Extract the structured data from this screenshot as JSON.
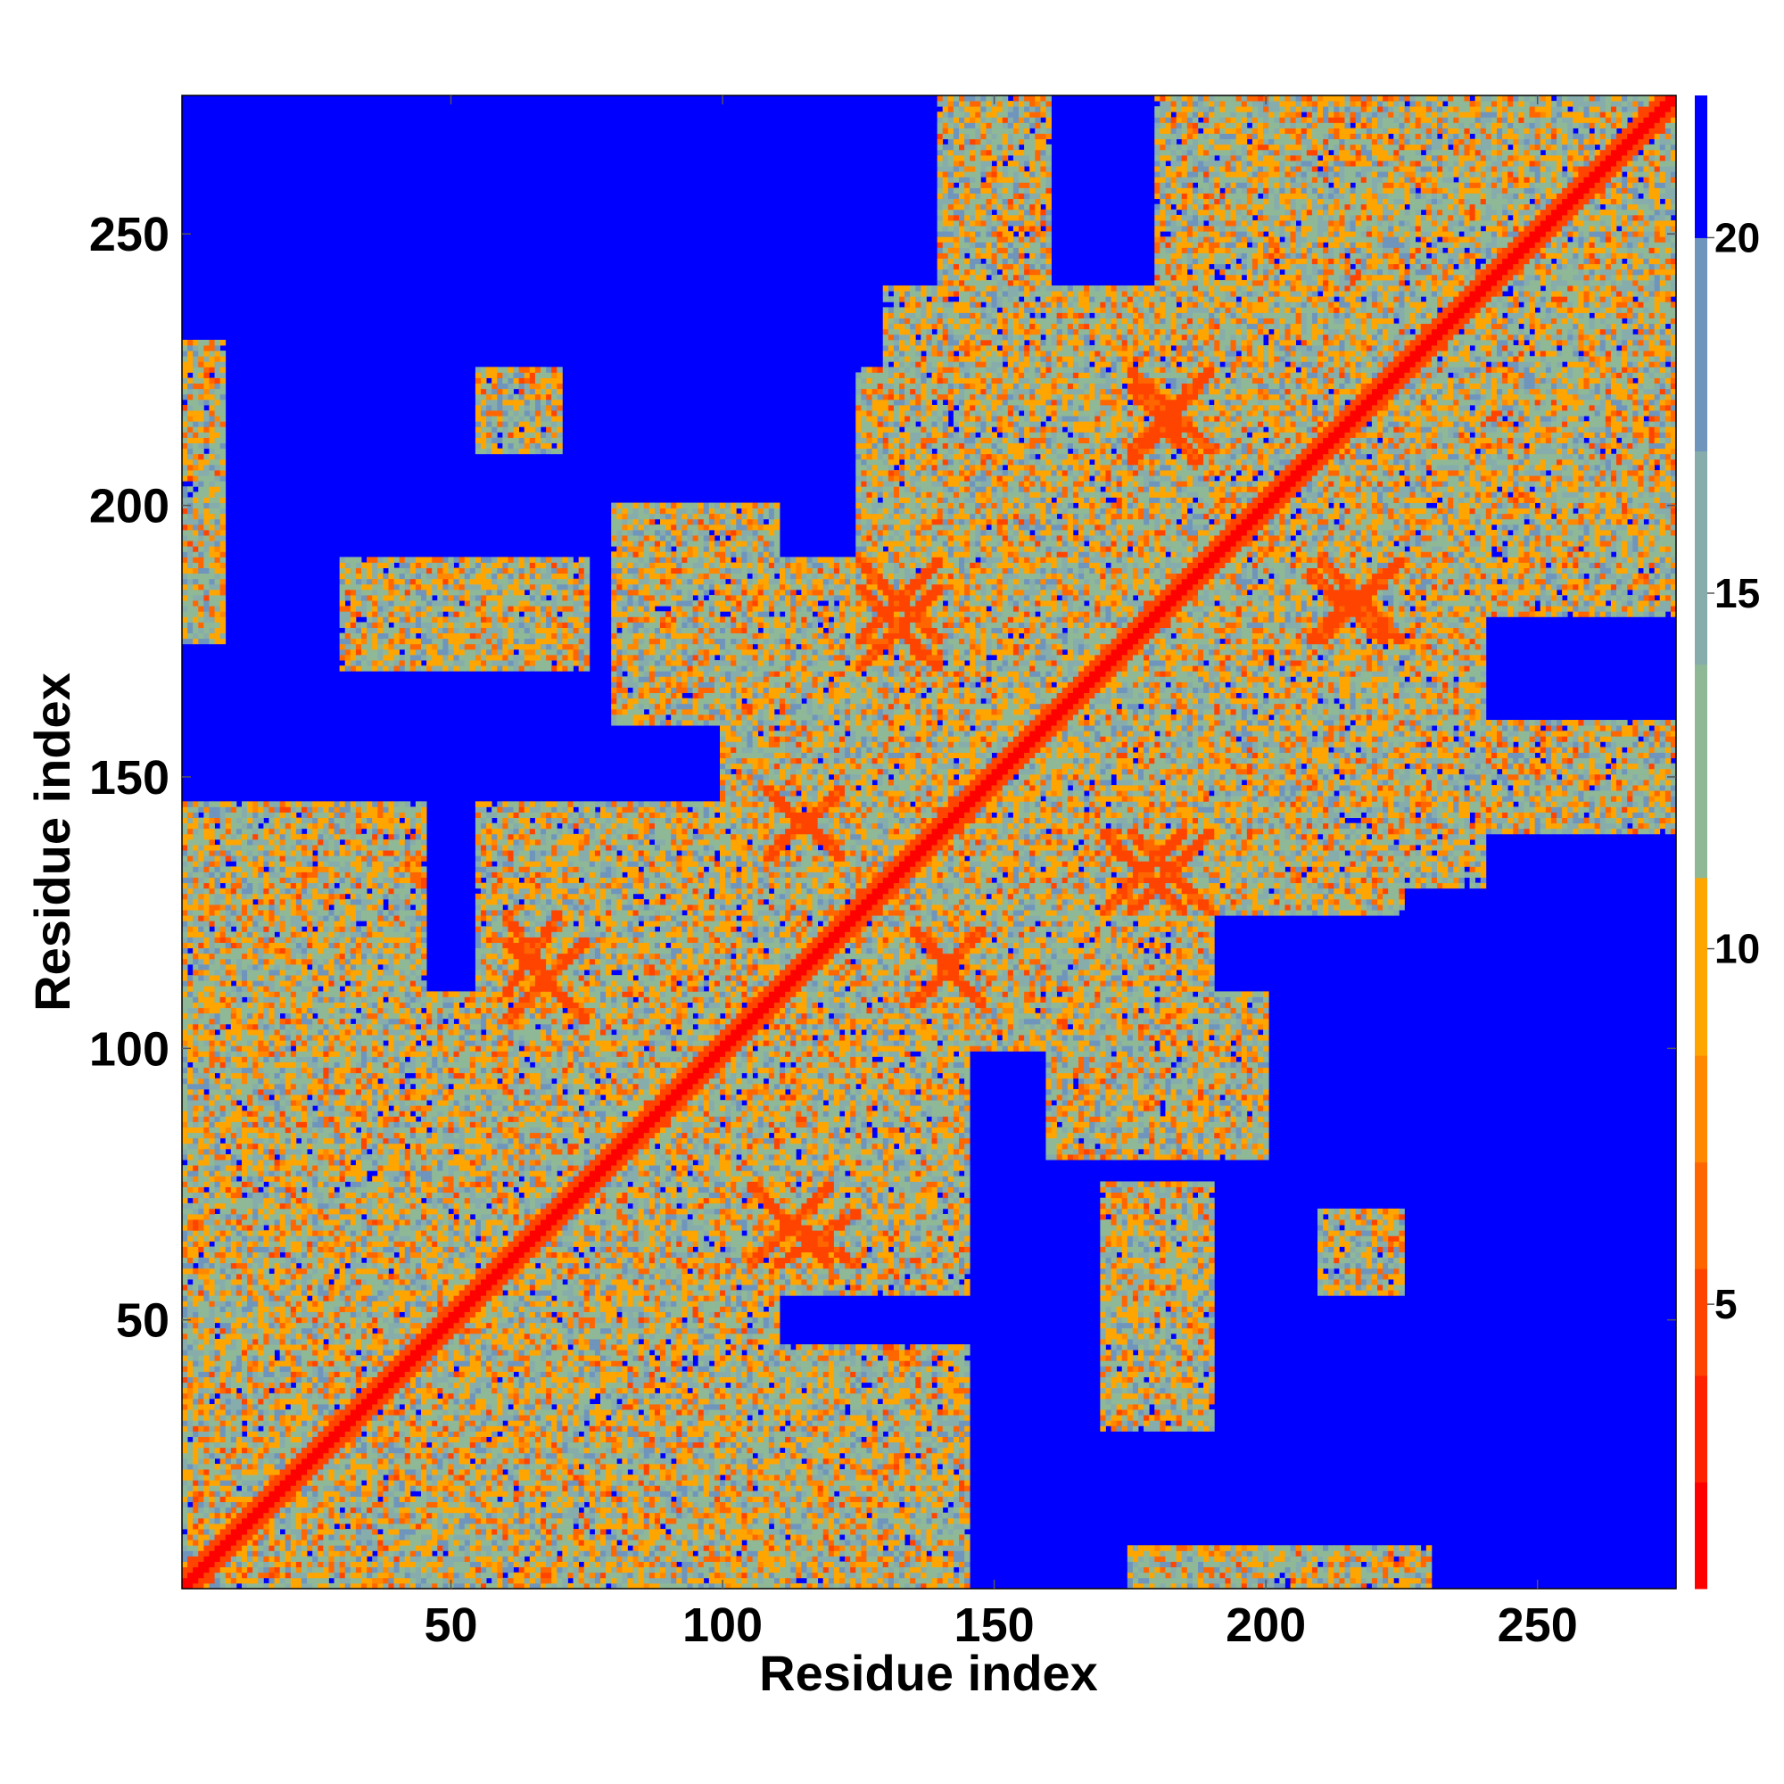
{
  "chart_data": {
    "type": "heatmap",
    "title": "",
    "xlabel": "Residue index",
    "ylabel": "Residue index",
    "n_residues": 275,
    "xlim": [
      1,
      275
    ],
    "ylim": [
      1,
      275
    ],
    "x_ticks": [
      50,
      100,
      150,
      200,
      250
    ],
    "y_ticks": [
      50,
      100,
      150,
      200,
      250
    ],
    "colorbar": {
      "range": [
        1,
        22
      ],
      "ticks": [
        5,
        10,
        15,
        20
      ],
      "colors": [
        "#ff0000",
        "#ff2200",
        "#ff4400",
        "#ff6600",
        "#ff8800",
        "#ffa500",
        "#8fb996",
        "#86adac",
        "#6f95bd",
        "#0000ff"
      ],
      "bounds": [
        1,
        2.5,
        4,
        5.5,
        7,
        8.5,
        11,
        14,
        17,
        20,
        22
      ]
    },
    "contact_blocks": [
      {
        "x": [
          1,
          55
        ],
        "y": [
          1,
          55
        ]
      },
      {
        "x": [
          30,
          110
        ],
        "y": [
          30,
          110
        ]
      },
      {
        "x": [
          60,
          140
        ],
        "y": [
          60,
          140
        ]
      },
      {
        "x": [
          120,
          180
        ],
        "y": [
          120,
          180
        ]
      },
      {
        "x": [
          150,
          230
        ],
        "y": [
          150,
          230
        ]
      },
      {
        "x": [
          190,
          275
        ],
        "y": [
          190,
          275
        ]
      },
      {
        "x": [
          225,
          275
        ],
        "y": [
          225,
          275
        ]
      },
      {
        "x": [
          100,
          145
        ],
        "y": [
          55,
          100
        ]
      },
      {
        "x": [
          55,
          100
        ],
        "y": [
          100,
          145
        ]
      },
      {
        "x": [
          135,
          190
        ],
        "y": [
          100,
          140
        ]
      },
      {
        "x": [
          100,
          140
        ],
        "y": [
          135,
          190
        ]
      },
      {
        "x": [
          170,
          225
        ],
        "y": [
          125,
          180
        ]
      },
      {
        "x": [
          125,
          180
        ],
        "y": [
          170,
          225
        ]
      },
      {
        "x": [
          190,
          240
        ],
        "y": [
          130,
          190
        ]
      },
      {
        "x": [
          130,
          190
        ],
        "y": [
          190,
          240
        ]
      },
      {
        "x": [
          215,
          275
        ],
        "y": [
          180,
          240
        ]
      },
      {
        "x": [
          180,
          240
        ],
        "y": [
          215,
          275
        ]
      },
      {
        "x": [
          20,
          60
        ],
        "y": [
          60,
          110
        ]
      },
      {
        "x": [
          60,
          110
        ],
        "y": [
          20,
          60
        ]
      },
      {
        "x": [
          1,
          45
        ],
        "y": [
          55,
          145
        ]
      },
      {
        "x": [
          55,
          145
        ],
        "y": [
          1,
          45
        ]
      },
      {
        "x": [
          160,
          200
        ],
        "y": [
          80,
          110
        ]
      },
      {
        "x": [
          80,
          110
        ],
        "y": [
          160,
          200
        ]
      },
      {
        "x": [
          230,
          275
        ],
        "y": [
          140,
          160
        ]
      },
      {
        "x": [
          140,
          160
        ],
        "y": [
          230,
          275
        ]
      },
      {
        "x": [
          60,
          75
        ],
        "y": [
          170,
          190
        ]
      },
      {
        "x": [
          170,
          190
        ],
        "y": [
          60,
          75
        ]
      },
      {
        "x": [
          55,
          70
        ],
        "y": [
          210,
          225
        ]
      },
      {
        "x": [
          210,
          225
        ],
        "y": [
          55,
          70
        ]
      },
      {
        "x": [
          1,
          8
        ],
        "y": [
          175,
          230
        ]
      },
      {
        "x": [
          175,
          230
        ],
        "y": [
          1,
          8
        ]
      },
      {
        "x": [
          170,
          190
        ],
        "y": [
          30,
          75
        ]
      },
      {
        "x": [
          30,
          75
        ],
        "y": [
          170,
          190
        ]
      },
      {
        "x": [
          210,
          225
        ],
        "y": [
          55,
          70
        ]
      },
      {
        "x": [
          55,
          70
        ],
        "y": [
          210,
          225
        ]
      }
    ],
    "strand_pairs": [
      {
        "x": [
          110,
          125
        ],
        "y": [
          60,
          70
        ]
      },
      {
        "x": [
          60,
          70
        ],
        "y": [
          110,
          125
        ]
      },
      {
        "x": [
          60,
          75
        ],
        "y": [
          105,
          120
        ]
      },
      {
        "x": [
          105,
          120
        ],
        "y": [
          60,
          75
        ]
      },
      {
        "x": [
          135,
          148
        ],
        "y": [
          108,
          122
        ]
      },
      {
        "x": [
          108,
          122
        ],
        "y": [
          135,
          148
        ]
      },
      {
        "x": [
          125,
          140
        ],
        "y": [
          170,
          185
        ]
      },
      {
        "x": [
          170,
          185
        ],
        "y": [
          125,
          140
        ]
      },
      {
        "x": [
          175,
          190
        ],
        "y": [
          125,
          140
        ]
      },
      {
        "x": [
          125,
          140
        ],
        "y": [
          175,
          190
        ]
      },
      {
        "x": [
          208,
          222
        ],
        "y": [
          175,
          188
        ]
      },
      {
        "x": [
          175,
          188
        ],
        "y": [
          208,
          222
        ]
      },
      {
        "x": [
          175,
          190
        ],
        "y": [
          210,
          225
        ]
      },
      {
        "x": [
          210,
          225
        ],
        "y": [
          175,
          190
        ]
      }
    ]
  }
}
